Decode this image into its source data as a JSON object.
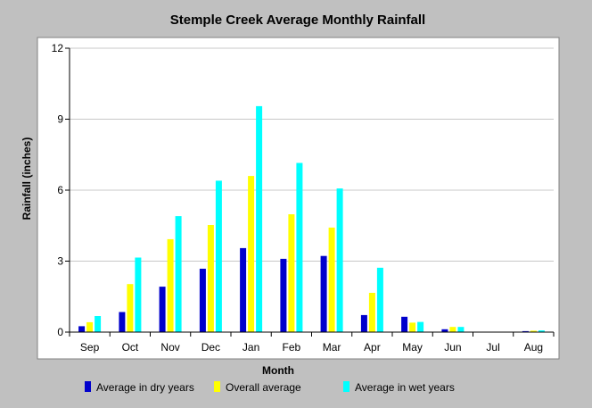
{
  "chart_data": {
    "type": "bar",
    "title": "Stemple Creek Average Monthly Rainfall",
    "xlabel": "Month",
    "ylabel": "Rainfall (inches)",
    "ylim": [
      0,
      12
    ],
    "yticks": [
      0,
      3,
      6,
      9,
      12
    ],
    "grid": true,
    "legend_position": "bottom",
    "categories": [
      "Sep",
      "Oct",
      "Nov",
      "Dec",
      "Jan",
      "Feb",
      "Mar",
      "Apr",
      "May",
      "Jun",
      "Jul",
      "Aug"
    ],
    "series": [
      {
        "name": "Average in dry years",
        "color": "#0000cc",
        "values": [
          0.25,
          0.85,
          1.92,
          2.68,
          3.55,
          3.1,
          3.22,
          0.72,
          0.65,
          0.12,
          0.0,
          0.04
        ]
      },
      {
        "name": "Overall average",
        "color": "#ffff00",
        "values": [
          0.42,
          2.03,
          3.93,
          4.53,
          6.6,
          4.98,
          4.42,
          1.66,
          0.4,
          0.22,
          0.0,
          0.06
        ]
      },
      {
        "name": "Average in wet years",
        "color": "#00ffff",
        "values": [
          0.68,
          3.15,
          4.9,
          6.4,
          9.55,
          7.15,
          6.07,
          2.72,
          0.43,
          0.22,
          0.0,
          0.07
        ]
      }
    ]
  }
}
